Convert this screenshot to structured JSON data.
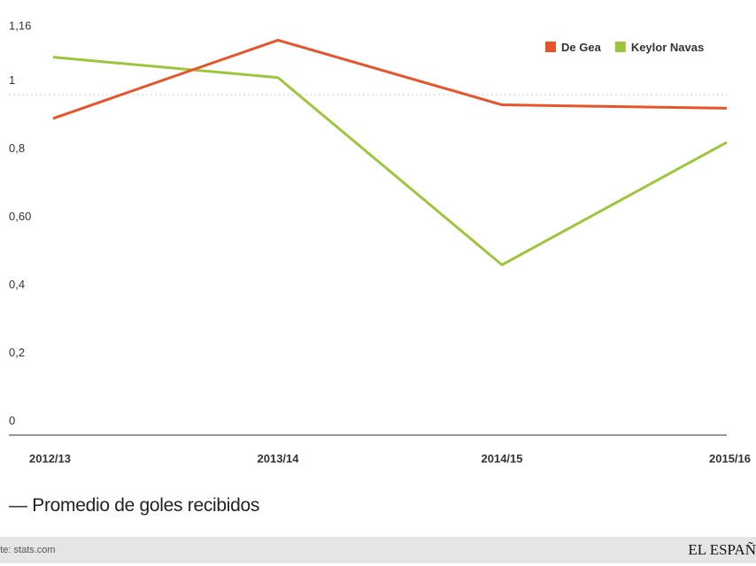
{
  "chart_data": {
    "type": "line",
    "categories": [
      "2012/13",
      "2013/14",
      "2014/15",
      "2015/16"
    ],
    "series": [
      {
        "name": "De Gea",
        "color": "#e8542a",
        "values": [
          0.93,
          1.16,
          0.97,
          0.96
        ]
      },
      {
        "name": "Keylor Navas",
        "color": "#9dc63c",
        "values": [
          1.11,
          1.05,
          0.5,
          0.86
        ]
      }
    ],
    "yticks": [
      0,
      0.2,
      0.4,
      0.6,
      0.8,
      1,
      1.16
    ],
    "ytick_labels": [
      "0",
      "0,2",
      "0,4",
      "0,60",
      "0,8",
      "1",
      "1,16"
    ],
    "ylim": [
      0,
      1.16
    ],
    "grid": "dotted line at 1",
    "legend_placement": "top-right"
  },
  "subtitle": "— Promedio de goles recibidos",
  "footer": {
    "source": "ente: stats.com",
    "logo": "EL ESPAÑ"
  }
}
